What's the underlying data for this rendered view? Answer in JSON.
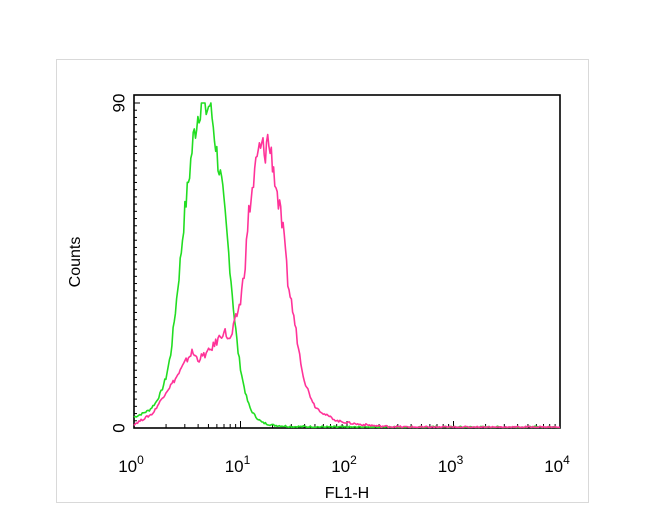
{
  "chart_data": {
    "type": "line",
    "xlabel": "FL1-H",
    "ylabel": "Counts",
    "x_scale": "log",
    "xlim": [
      1,
      10000
    ],
    "ylim": [
      0,
      90
    ],
    "x_ticks": [
      {
        "base": "10",
        "exp": "0"
      },
      {
        "base": "10",
        "exp": "1"
      },
      {
        "base": "10",
        "exp": "2"
      },
      {
        "base": "10",
        "exp": "3"
      },
      {
        "base": "10",
        "exp": "4"
      }
    ],
    "y_ticks": [
      "0",
      "90"
    ],
    "grid": false,
    "series": [
      {
        "color": "#22dd22",
        "x": [
          1.0,
          1.2,
          1.4,
          1.6,
          1.8,
          2.0,
          2.2,
          2.5,
          2.8,
          3.0,
          3.3,
          3.6,
          4.0,
          4.4,
          4.8,
          5.2,
          5.6,
          6.0,
          6.6,
          7.2,
          8.0,
          8.8,
          9.6,
          10.5,
          11.5,
          12.5,
          14.0,
          16.0,
          20.0,
          30.0,
          100.0,
          10000.0
        ],
        "y": [
          3,
          4,
          5,
          7,
          10,
          14,
          20,
          35,
          50,
          60,
          70,
          80,
          87,
          92,
          88,
          90,
          83,
          76,
          68,
          58,
          44,
          30,
          20,
          13,
          8,
          5,
          3,
          1.5,
          0.8,
          0.4,
          0.2,
          0.2
        ]
      },
      {
        "color": "#ff3399",
        "x": [
          1.0,
          1.5,
          2.0,
          2.5,
          3.0,
          3.5,
          4.0,
          5.0,
          6.0,
          7.0,
          8.0,
          9.0,
          10.0,
          11.0,
          12.0,
          13.0,
          14.0,
          15.0,
          16.0,
          17.0,
          18.0,
          20.0,
          22.0,
          25.0,
          28.0,
          32.0,
          36.0,
          40.0,
          45.0,
          50.0,
          60.0,
          70.0,
          80.0,
          100.0,
          130.0,
          160.0,
          200.0,
          300.0,
          500.0,
          1000.0,
          10000.0
        ],
        "y": [
          1,
          4,
          10,
          14,
          18,
          21,
          19,
          21,
          24,
          27,
          24,
          30,
          35,
          45,
          60,
          66,
          73,
          77,
          78,
          76,
          80,
          74,
          65,
          55,
          40,
          30,
          20,
          13,
          9,
          6,
          4,
          3,
          2,
          1.5,
          1,
          0.8,
          0.5,
          0.3,
          0.2,
          0.2,
          0.2
        ]
      }
    ]
  }
}
